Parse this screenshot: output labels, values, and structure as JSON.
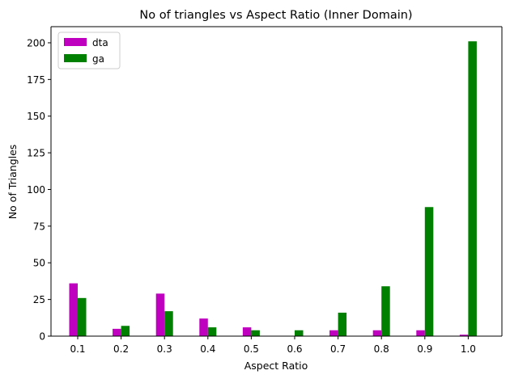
{
  "chart_data": {
    "type": "bar",
    "title": "No of triangles vs Aspect Ratio (Inner Domain)",
    "xlabel": "Aspect Ratio",
    "ylabel": "No of Triangles",
    "categories": [
      "0.1",
      "0.2",
      "0.3",
      "0.4",
      "0.5",
      "0.6",
      "0.7",
      "0.8",
      "0.9",
      "1.0"
    ],
    "series": [
      {
        "name": "dta",
        "color": "#bf00bf",
        "values": [
          36,
          5,
          29,
          12,
          6,
          0,
          4,
          4,
          4,
          1
        ]
      },
      {
        "name": "ga",
        "color": "#008000",
        "values": [
          26,
          7,
          17,
          6,
          4,
          4,
          16,
          34,
          88,
          201
        ]
      }
    ],
    "ylim": [
      0,
      211
    ],
    "yticks": [
      0,
      25,
      50,
      75,
      100,
      125,
      150,
      175,
      200
    ],
    "grid": false,
    "legend_position": "top-left"
  }
}
